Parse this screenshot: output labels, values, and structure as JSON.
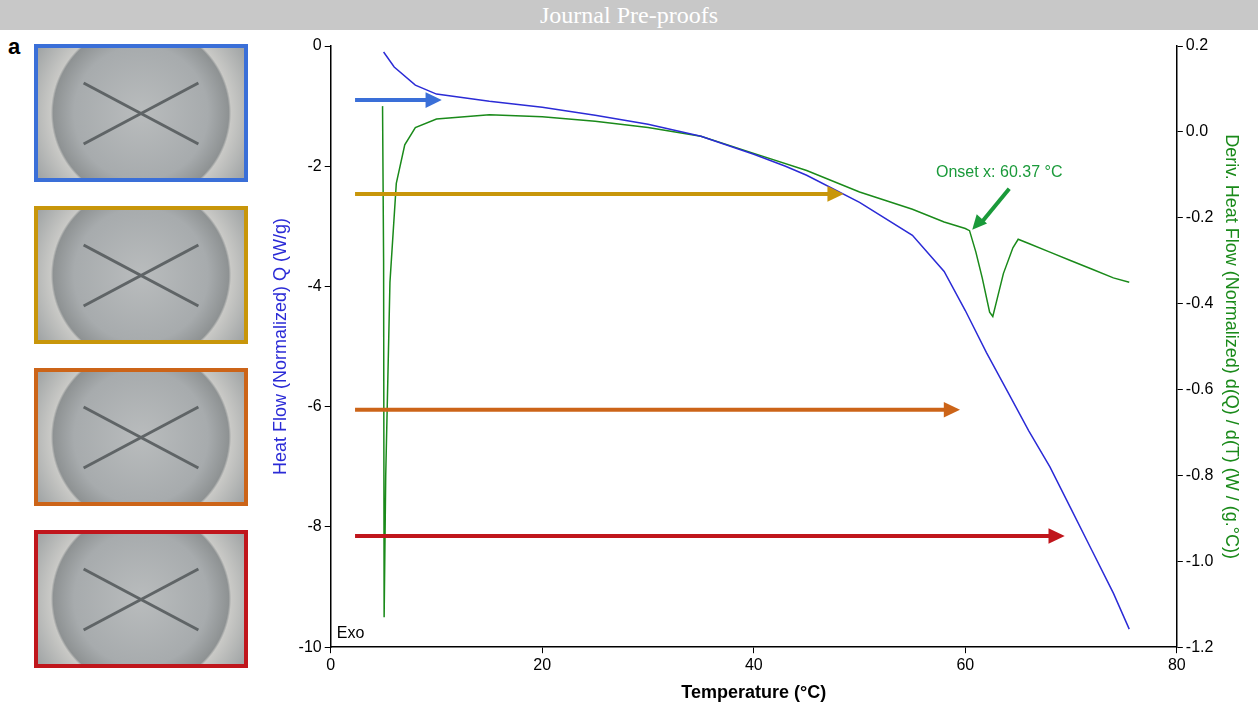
{
  "chart_data": {
    "type": "line",
    "banner": "Journal Pre-proofs",
    "panel_label": "a",
    "x_label": "Temperature (°C)",
    "y_label": "Heat Flow (Normalized) Q (W/g)",
    "y2_label": "Deriv. Heat Flow (Normalized) d(Q) / d(T) (W / (g.°C))",
    "xlim": [
      0,
      80
    ],
    "xticks": [
      0,
      20,
      40,
      60,
      80
    ],
    "ylim": [
      -10,
      0
    ],
    "yticks": [
      -10,
      -8,
      -6,
      -4,
      -2,
      0
    ],
    "y2lim": [
      -1.2,
      0.2
    ],
    "y2ticks": [
      -1.2,
      {
        "value": -1.0,
        "label": "-1.0"
      },
      -0.8,
      -0.6,
      -0.4,
      -0.2,
      {
        "value": 0.0,
        "label": "0.0"
      },
      0.2
    ],
    "grid": false,
    "series": [
      {
        "color": "#2b2bd6",
        "axis": "y",
        "x": [
          5,
          6,
          8,
          10,
          15,
          20,
          25,
          30,
          35,
          40,
          43,
          45,
          50,
          55,
          58,
          60,
          62,
          64,
          66,
          68,
          70,
          72,
          74,
          75.5
        ],
        "values": [
          -0.1,
          -0.35,
          -0.65,
          -0.8,
          -0.92,
          -1.02,
          -1.15,
          -1.3,
          -1.5,
          -1.8,
          -2.0,
          -2.15,
          -2.6,
          -3.15,
          -3.75,
          -4.4,
          -5.1,
          -5.75,
          -6.4,
          -7.0,
          -7.7,
          -8.4,
          -9.1,
          -9.7
        ]
      },
      {
        "color": "#1a8a1a",
        "axis": "y2",
        "x": [
          4.9,
          5.0,
          5.05,
          5.2,
          5.6,
          6.2,
          7,
          8,
          10,
          15,
          20,
          25,
          30,
          35,
          40,
          45,
          50,
          55,
          58,
          60,
          60.4,
          61,
          61.6,
          62.3,
          62.6,
          63,
          63.6,
          64.5,
          65,
          66,
          68,
          70,
          72,
          74,
          75.5
        ],
        "values": [
          0.06,
          -0.3,
          -1.13,
          -0.8,
          -0.35,
          -0.12,
          -0.03,
          0.01,
          0.03,
          0.04,
          0.035,
          0.025,
          0.01,
          -0.01,
          -0.05,
          -0.09,
          -0.14,
          -0.18,
          -0.21,
          -0.225,
          -0.23,
          -0.28,
          -0.34,
          -0.42,
          -0.43,
          -0.39,
          -0.33,
          -0.27,
          -0.25,
          -0.26,
          -0.28,
          -0.3,
          -0.32,
          -0.34,
          -0.35
        ]
      }
    ],
    "arrows": [
      {
        "color": "#3a6fd8",
        "x": [
          2.3,
          10.5
        ],
        "y": -0.9
      },
      {
        "color": "#c8960a",
        "x": [
          2.3,
          48.5
        ],
        "y": -2.46
      },
      {
        "color": "#cc6418",
        "x": [
          2.3,
          59.5
        ],
        "y": -6.05
      },
      {
        "color": "#c0161c",
        "x": [
          2.3,
          69.4
        ],
        "y": -8.15
      }
    ],
    "onset": {
      "text": "Onset x: 60.37 °C",
      "x": 60.37,
      "y": -0.23,
      "axis": "y2",
      "color": "#1a9a3a"
    },
    "corner_text": "Exo"
  }
}
